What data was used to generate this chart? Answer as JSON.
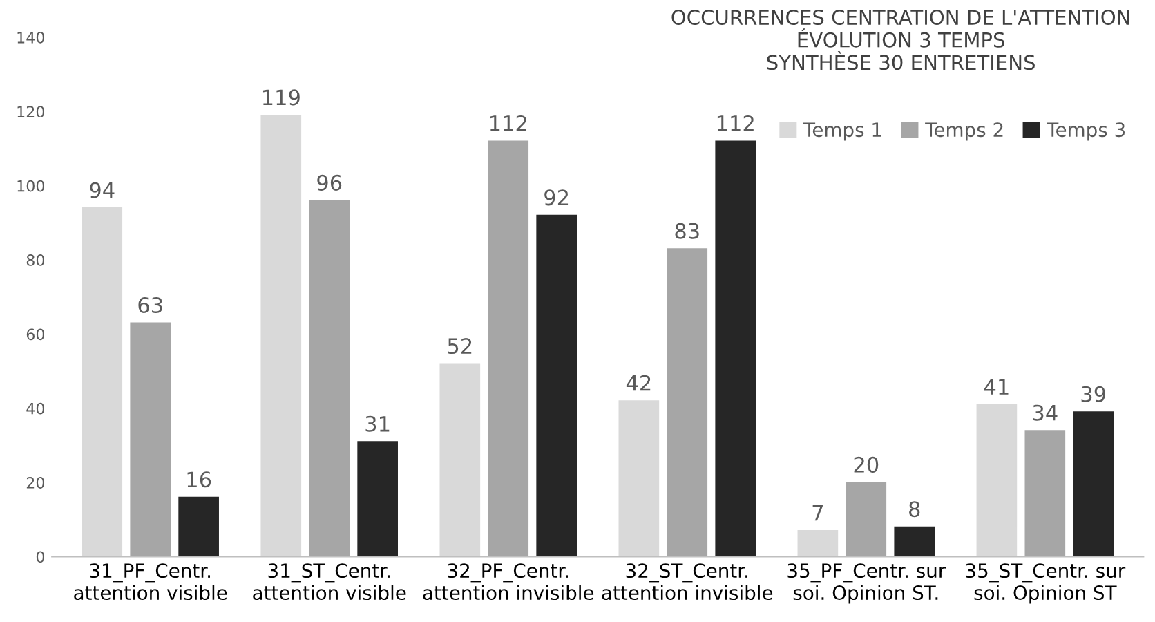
{
  "chart_data": {
    "type": "bar",
    "title": "OCCURRENCES CENTRATION DE L'ATTENTION\nÉVOLUTION 3 TEMPS\nSYNTHÈSE 30 ENTRETIENS",
    "categories": [
      "31_PF_Centr.\nattention visible",
      "31_ST_Centr.\nattention visible",
      "32_PF_Centr.\nattention invisible",
      "32_ST_Centr.\nattention invisible",
      "35_PF_Centr. sur\nsoi. Opinion ST.",
      "35_ST_Centr. sur\nsoi. Opinion ST"
    ],
    "series": [
      {
        "name": "Temps 1",
        "color": "#d9d9d9",
        "values": [
          94,
          119,
          52,
          42,
          7,
          41
        ]
      },
      {
        "name": "Temps 2",
        "color": "#a6a6a6",
        "values": [
          63,
          96,
          112,
          83,
          20,
          34
        ]
      },
      {
        "name": "Temps 3",
        "color": "#262626",
        "values": [
          16,
          31,
          92,
          112,
          8,
          39
        ]
      }
    ],
    "ylim": [
      0,
      140
    ],
    "yticks": [
      0,
      20,
      40,
      60,
      80,
      100,
      120,
      140
    ],
    "grid": false,
    "legend": "top right",
    "data_labels": true
  }
}
